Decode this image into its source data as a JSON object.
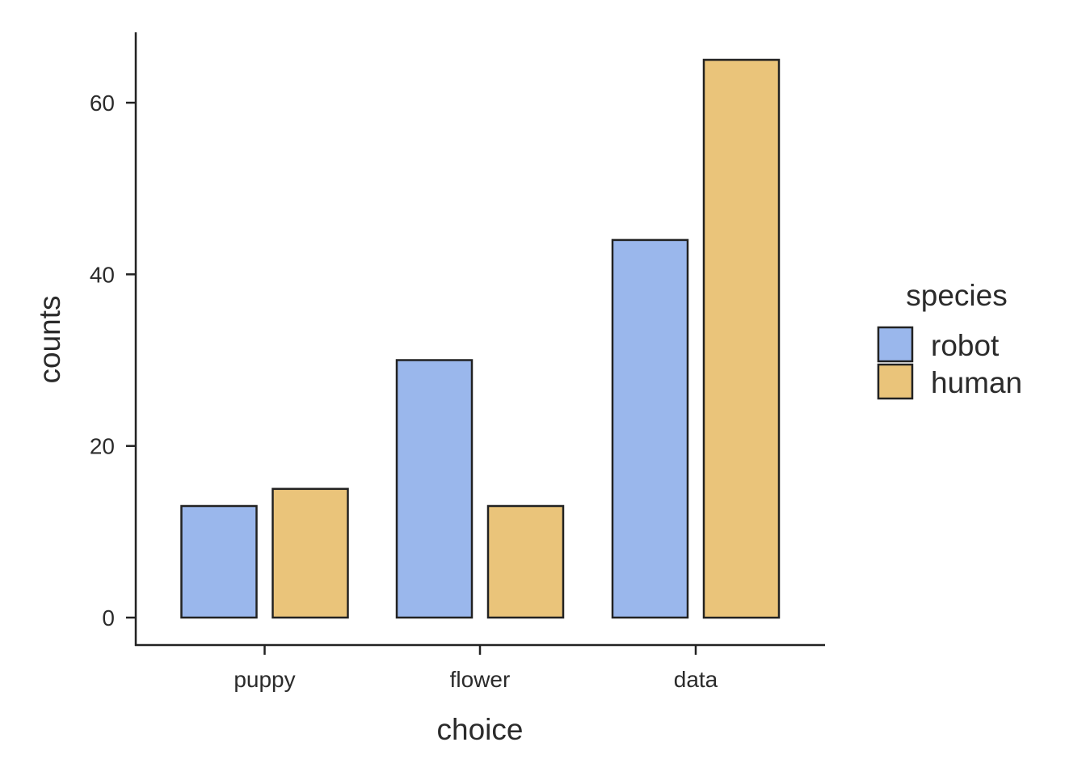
{
  "chart_data": {
    "type": "bar",
    "xlabel": "choice",
    "ylabel": "counts",
    "categories": [
      "puppy",
      "flower",
      "data"
    ],
    "series": [
      {
        "name": "robot",
        "values": [
          13,
          30,
          44
        ],
        "color": "#9AB7EC"
      },
      {
        "name": "human",
        "values": [
          15,
          13,
          65
        ],
        "color": "#EAC47A"
      }
    ],
    "ylim": [
      -3.2,
      68.2
    ],
    "yticks": [
      0,
      20,
      40,
      60
    ],
    "legend": {
      "title": "species",
      "position": "right"
    },
    "grid": false,
    "bar_outline_color": "#222222"
  }
}
